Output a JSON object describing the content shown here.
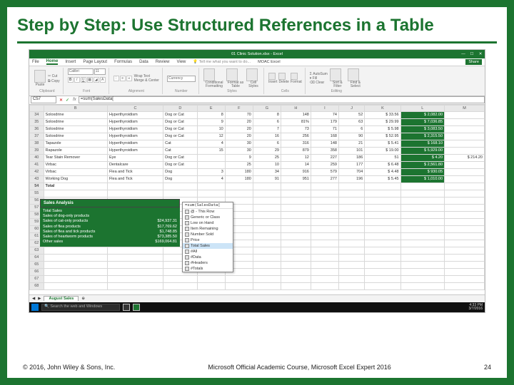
{
  "slide": {
    "title": "Step by Step: Use Structured References in a Table",
    "copyright": "© 2016, John Wiley & Sons, Inc.",
    "course": "Microsoft Official Academic Course, Microsoft Excel Expert 2016",
    "page_num": "24"
  },
  "colors": {
    "brand_green": "#1c7430",
    "ribbon_bg": "#f3f3f3",
    "grid_border": "#d8d8d8"
  },
  "excel": {
    "titlebar": "01 Clinic Solution.xlsx - Excel",
    "account": "MOAC Excel",
    "share": "Share",
    "tabs": [
      "File",
      "Home",
      "Insert",
      "Page Layout",
      "Formulas",
      "Data",
      "Review",
      "View"
    ],
    "active_tab": "Home",
    "tell_me": "Tell me what you want to do...",
    "ribbon_groups": {
      "clipboard": {
        "label": "Clipboard",
        "paste": "Paste",
        "cut": "Cut",
        "copy": "Copy"
      },
      "font": {
        "label": "Font",
        "family": "Calibri",
        "size": "11"
      },
      "alignment": {
        "label": "Alignment",
        "wrap": "Wrap Text",
        "merge": "Merge & Center"
      },
      "number": {
        "label": "Number",
        "fmt": "Currency"
      },
      "styles": {
        "label": "Styles",
        "cond": "Conditional Formatting",
        "table": "Format as Table",
        "cell": "Cell Styles"
      },
      "cells": {
        "label": "Cells",
        "ins": "Insert",
        "del": "Delete",
        "fmt": "Format"
      },
      "editing": {
        "label": "Editing",
        "sum": "AutoSum",
        "fill": "Fill",
        "clear": "Clear",
        "sort": "Sort & Filter",
        "find": "Find & Select"
      }
    },
    "name_box": "C57",
    "formula": "=sum(SalesData[",
    "columns": [
      "",
      "B",
      "C",
      "D",
      "E",
      "F",
      "G",
      "H",
      "I",
      "J",
      "K",
      "L",
      "M"
    ],
    "col_letters_row": [
      "A",
      "B",
      "C",
      "D",
      "E",
      "F",
      "G",
      "H",
      "I",
      "J",
      "K",
      "L",
      "M"
    ],
    "rows": [
      {
        "n": "34",
        "b": "Soloxdrine",
        "c": "Hyperthyroidism",
        "d": "Dog or Cat",
        "e": "8",
        "f": "70",
        "g": "8",
        "h": "148",
        "i": "74",
        "j": "52",
        "k": "$ 33.56",
        "l": "$ 2,082.00",
        "m": ""
      },
      {
        "n": "35",
        "b": "Soloxdrine",
        "c": "Hyperthyroidism",
        "d": "Dog or Cat",
        "e": "9",
        "f": "20",
        "g": "6",
        "h": "81%",
        "i": "179",
        "j": "63",
        "k": "$ 29.99",
        "l": "$ 7,036.85",
        "m": ""
      },
      {
        "n": "36",
        "b": "Soloxdrine",
        "c": "Hyperthyroidism",
        "d": "Dog or Cat",
        "e": "10",
        "f": "20",
        "g": "7",
        "h": "73",
        "i": "71",
        "j": "6",
        "k": "$ 5.98",
        "l": "$ 3,083.50",
        "m": ""
      },
      {
        "n": "37",
        "b": "Soloxdrine",
        "c": "Hyperthyroidism",
        "d": "Dog or Cat",
        "e": "12",
        "f": "20",
        "g": "16",
        "h": "256",
        "i": "168",
        "j": "90",
        "k": "$ 52.95",
        "l": "$ 2,315.50",
        "m": ""
      },
      {
        "n": "38",
        "b": "Tapazole",
        "c": "Hyperthyroidism",
        "d": "Cat",
        "e": "4",
        "f": "30",
        "g": "6",
        "h": "316",
        "i": "148",
        "j": "21",
        "k": "$ 5.41",
        "l": "$ 168.10",
        "m": ""
      },
      {
        "n": "39",
        "b": "Rapazole",
        "c": "Hyperthyroidism",
        "d": "Cat",
        "e": "15",
        "f": "30",
        "g": "29",
        "h": "879",
        "i": "358",
        "j": "101",
        "k": "$ 19.00",
        "l": "$ 5,929.00",
        "m": ""
      },
      {
        "n": "40",
        "b": "Tear Stain Remover",
        "c": "Eye",
        "d": "Dog or Cat",
        "e": "",
        "f": "9",
        "g": "25",
        "h": "12",
        "i": "227",
        "j": "186",
        "k": "51",
        "l": "$ 4.20",
        "m": "$ 214.20"
      },
      {
        "n": "41",
        "b": "Virbac",
        "c": "Dentalcare",
        "d": "Dog or Cat",
        "e": "",
        "f": "25",
        "g": "10",
        "h": "14",
        "i": "259",
        "j": "177",
        "j2": "92",
        "k": "$ 6.48",
        "l": "$ 2,561.80",
        "m": ""
      },
      {
        "n": "42",
        "b": "Virbac",
        "c": "Flea and Tick",
        "d": "Dog",
        "e": "3",
        "f": "180",
        "g": "34",
        "h": "916",
        "i": "579",
        "j": "704",
        "k": "$ 4.48",
        "l": "$ 930.05",
        "m": ""
      },
      {
        "n": "43",
        "b": "Working Dog",
        "c": "Flea and Tick",
        "d": "Dog",
        "e": "4",
        "f": "180",
        "g": "91",
        "h": "951",
        "i": "277",
        "j": "196",
        "k": "$ 5.45",
        "l": "$ 1,010.00",
        "m": ""
      }
    ],
    "total_row": {
      "n": "54",
      "l": "Total"
    },
    "empty_rows": [
      "55"
    ],
    "analysis": {
      "header": "Sales Analysis",
      "items": [
        {
          "k": "Total Sales",
          "v": ""
        },
        {
          "k": "Sales of dog-only products",
          "v": ""
        },
        {
          "k": "Sales of cat-only products",
          "v": "$24,937.31"
        },
        {
          "k": "",
          "v": ""
        },
        {
          "k": "Sales of flea products",
          "v": "$17,769.62"
        },
        {
          "k": "Sales of flea and tick products",
          "v": "$1,748.85"
        },
        {
          "k": "Sales of heartworm products",
          "v": "$73,385.50"
        },
        {
          "k": "Other sales",
          "v": "$169,064.81"
        }
      ]
    },
    "autocomplete": {
      "formula": "=sum(SalesData[",
      "items": [
        {
          "t": "@ - This Row",
          "sel": false
        },
        {
          "t": "Generic or Class",
          "sel": false
        },
        {
          "t": "Low on Hand",
          "sel": false
        },
        {
          "t": "Item Remaining",
          "sel": false
        },
        {
          "t": "Number Sold",
          "sel": false
        },
        {
          "t": "Price",
          "sel": false
        },
        {
          "t": "Total Sales",
          "sel": true
        },
        {
          "t": "#All",
          "sel": false
        },
        {
          "t": "#Data",
          "sel": false
        },
        {
          "t": "#Headers",
          "sel": false
        },
        {
          "t": "#Totals",
          "sel": false
        }
      ]
    },
    "sheet_tab": "August Sales",
    "taskbar": {
      "search": "Search the web and Windows",
      "time": "4:33 PM",
      "date": "3/7/2016"
    }
  }
}
